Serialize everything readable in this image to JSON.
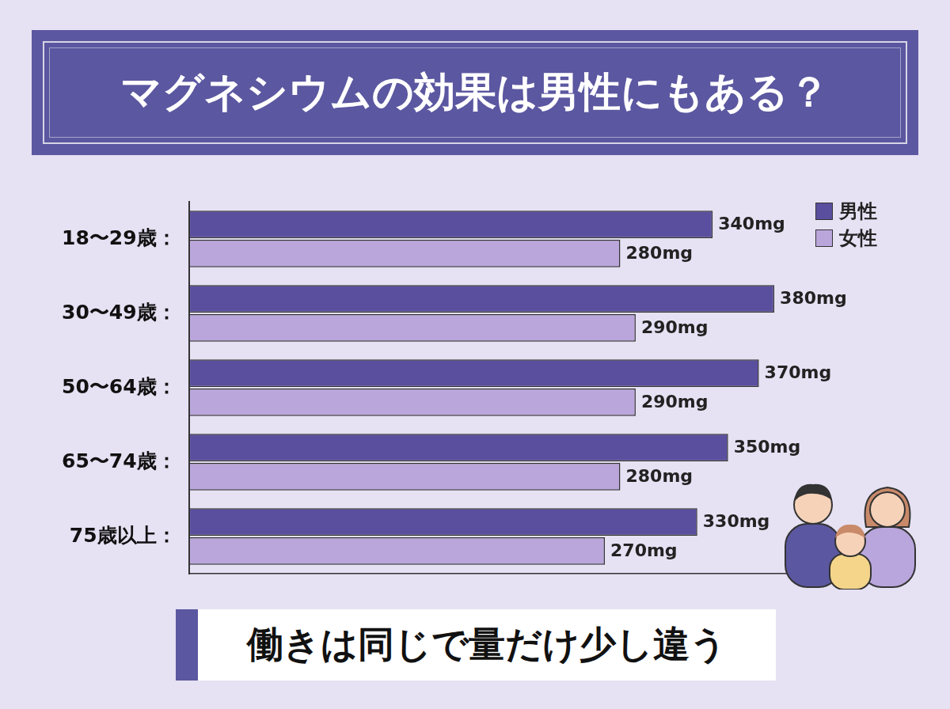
{
  "chart_data": {
    "type": "bar",
    "orientation": "horizontal",
    "title": "マグネシウムの効果は男性にもある？",
    "subtitle": "働きは同じで量だけ少し違う",
    "categories": [
      "18〜29歳：",
      "30〜49歳：",
      "50〜64歳：",
      "65〜74歳：",
      "75歳以上："
    ],
    "series": [
      {
        "name": "男性",
        "color": "#5a4f9f",
        "values": [
          340,
          380,
          370,
          350,
          330
        ],
        "value_labels": [
          "340mg",
          "380mg",
          "370mg",
          "350mg",
          "330mg"
        ]
      },
      {
        "name": "女性",
        "color": "#bba6dc",
        "values": [
          280,
          290,
          290,
          280,
          270
        ],
        "value_labels": [
          "280mg",
          "290mg",
          "290mg",
          "280mg",
          "270mg"
        ]
      }
    ],
    "xlim": [
      0,
      400
    ],
    "data_labels": true,
    "tick_labels": "y",
    "legend": "upper right",
    "grid": false
  }
}
